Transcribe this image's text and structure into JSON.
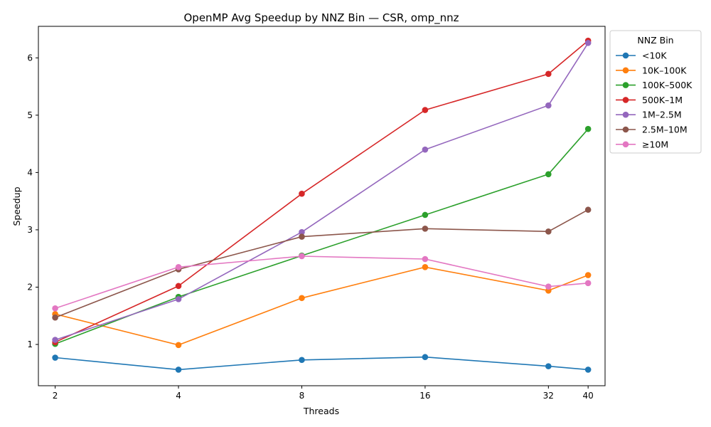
{
  "chart_data": {
    "type": "line",
    "title": "OpenMP Avg Speedup by NNZ Bin — CSR, omp_nnz",
    "xlabel": "Threads",
    "ylabel": "Speedup",
    "x_scale": "log2",
    "x": [
      2,
      4,
      8,
      16,
      32,
      40
    ],
    "x_tick_labels": [
      "2",
      "4",
      "8",
      "16",
      "32",
      "40"
    ],
    "xlim": [
      1.82,
      44
    ],
    "ylim": [
      0.28,
      6.55
    ],
    "y_ticks": [
      1,
      2,
      3,
      4,
      5,
      6
    ],
    "y_tick_labels": [
      "1",
      "2",
      "3",
      "4",
      "5",
      "6"
    ],
    "grid": false,
    "legend": {
      "title": "NNZ Bin",
      "position": "outside-right-top"
    },
    "series": [
      {
        "name": "<10K",
        "color": "#1f77b4",
        "values": [
          0.77,
          0.56,
          0.73,
          0.78,
          0.62,
          0.56
        ]
      },
      {
        "name": "10K–100K",
        "color": "#ff7f0e",
        "values": [
          1.53,
          0.99,
          1.81,
          2.35,
          1.94,
          2.21
        ]
      },
      {
        "name": "100K–500K",
        "color": "#2ca02c",
        "values": [
          1.01,
          1.83,
          2.55,
          3.26,
          3.97,
          4.76
        ]
      },
      {
        "name": "500K–1M",
        "color": "#d62728",
        "values": [
          1.04,
          2.02,
          3.63,
          5.09,
          5.72,
          6.3
        ]
      },
      {
        "name": "1M–2.5M",
        "color": "#9467bd",
        "values": [
          1.08,
          1.79,
          2.96,
          4.4,
          5.17,
          6.26
        ]
      },
      {
        "name": "2.5M–10M",
        "color": "#8c564b",
        "values": [
          1.47,
          2.31,
          2.88,
          3.02,
          2.97,
          3.35
        ]
      },
      {
        "name": "≥10M",
        "color": "#e377c2",
        "values": [
          1.63,
          2.35,
          2.54,
          2.49,
          2.01,
          2.07
        ]
      }
    ]
  }
}
